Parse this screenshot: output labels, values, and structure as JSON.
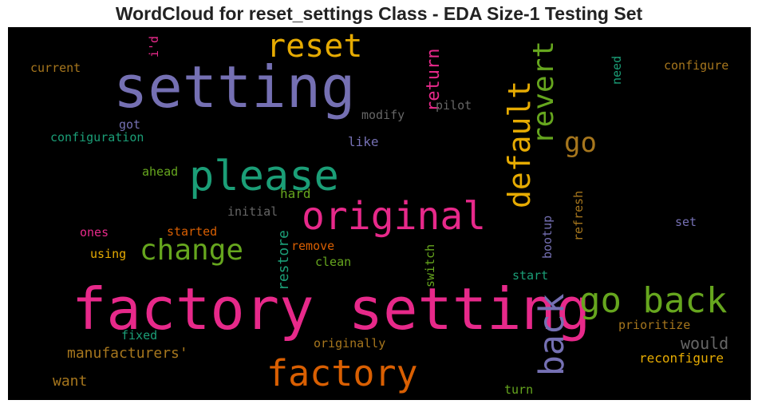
{
  "title": "WordCloud for reset_settings Class - EDA Size-1 Testing Set",
  "chart_data": {
    "type": "wordcloud",
    "title": "WordCloud for reset_settings Class - EDA Size-1 Testing Set",
    "background": "#000000",
    "palette": "Dark2",
    "words": [
      {
        "text": "factory setting",
        "color": "#e7298a"
      },
      {
        "text": "setting",
        "color": "#7570b3"
      },
      {
        "text": "please",
        "color": "#1b9e77"
      },
      {
        "text": "original",
        "color": "#e7298a"
      },
      {
        "text": "factory",
        "color": "#d95f02"
      },
      {
        "text": "go back",
        "color": "#66a61e"
      },
      {
        "text": "reset",
        "color": "#e6ab02"
      },
      {
        "text": "back",
        "color": "#7570b3"
      },
      {
        "text": "default",
        "color": "#e6ab02"
      },
      {
        "text": "change",
        "color": "#66a61e"
      },
      {
        "text": "revert",
        "color": "#66a61e"
      },
      {
        "text": "go",
        "color": "#a6761d"
      },
      {
        "text": "return",
        "color": "#e7298a"
      },
      {
        "text": "would",
        "color": "#666666"
      },
      {
        "text": "manufacturers'",
        "color": "#a6761d"
      },
      {
        "text": "restore",
        "color": "#1b9e77"
      },
      {
        "text": "hard",
        "color": "#66a61e"
      },
      {
        "text": "want",
        "color": "#a6761d"
      },
      {
        "text": "configure",
        "color": "#a6761d"
      },
      {
        "text": "current",
        "color": "#a6761d"
      },
      {
        "text": "configuration",
        "color": "#1b9e77"
      },
      {
        "text": "modify",
        "color": "#666666"
      },
      {
        "text": "pilot",
        "color": "#666666"
      },
      {
        "text": "like",
        "color": "#7570b3"
      },
      {
        "text": "got",
        "color": "#7570b3"
      },
      {
        "text": "ahead",
        "color": "#66a61e"
      },
      {
        "text": "initial",
        "color": "#666666"
      },
      {
        "text": "ones",
        "color": "#e7298a"
      },
      {
        "text": "started",
        "color": "#d95f02"
      },
      {
        "text": "using",
        "color": "#e6ab02"
      },
      {
        "text": "remove",
        "color": "#d95f02"
      },
      {
        "text": "clean",
        "color": "#66a61e"
      },
      {
        "text": "switch",
        "color": "#66a61e"
      },
      {
        "text": "start",
        "color": "#1b9e77"
      },
      {
        "text": "bootup",
        "color": "#7570b3"
      },
      {
        "text": "refresh",
        "color": "#a6761d"
      },
      {
        "text": "set",
        "color": "#7570b3"
      },
      {
        "text": "prioritize",
        "color": "#a6761d"
      },
      {
        "text": "reconfigure",
        "color": "#e6ab02"
      },
      {
        "text": "fixed",
        "color": "#1b9e77"
      },
      {
        "text": "originally",
        "color": "#a6761d"
      },
      {
        "text": "turn",
        "color": "#66a61e"
      },
      {
        "text": "need",
        "color": "#1b9e77"
      },
      {
        "text": "i'd",
        "color": "#e7298a"
      }
    ]
  }
}
